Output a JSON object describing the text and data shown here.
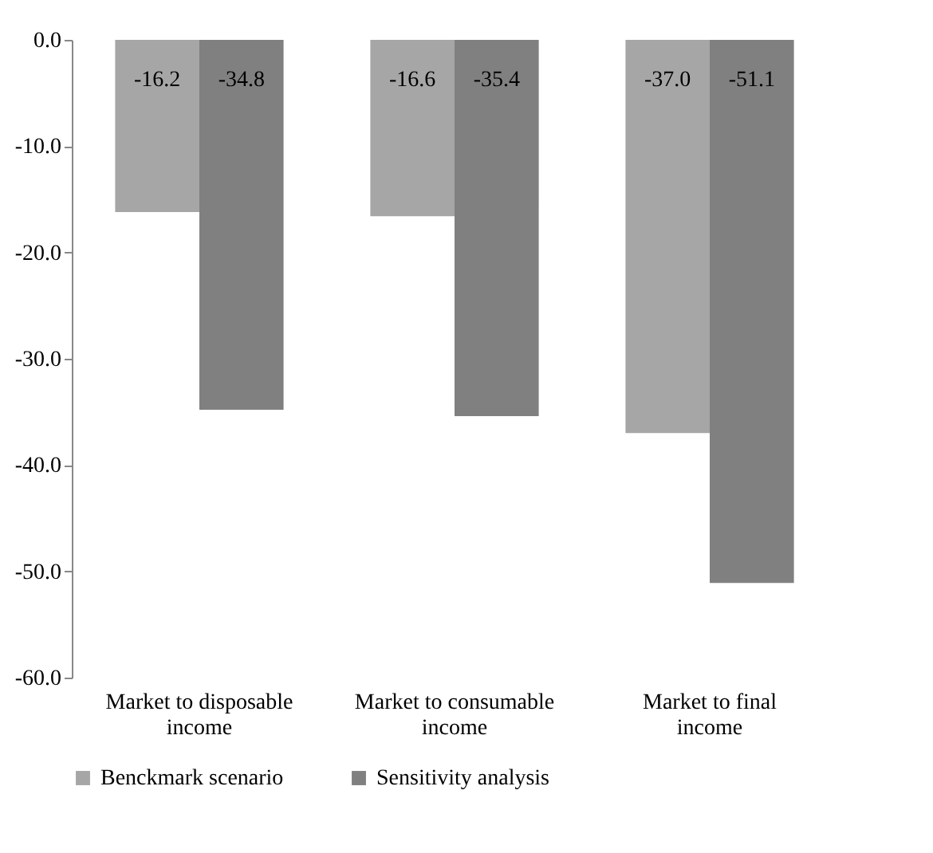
{
  "chart_data": {
    "type": "bar",
    "categories": [
      "Market to disposable income",
      "Market to consumable income",
      "Market to final income"
    ],
    "series": [
      {
        "name": "Benckmark scenario",
        "color": "#a6a6a6",
        "values": [
          -16.2,
          -16.6,
          -37.0
        ],
        "value_labels": [
          "-16.2",
          "-16.6",
          "-37.0"
        ]
      },
      {
        "name": "Sensitivity analysis",
        "color": "#808080",
        "values": [
          -34.8,
          -35.4,
          -51.1
        ],
        "value_labels": [
          "-34.8",
          "-35.4",
          "-51.1"
        ]
      }
    ],
    "ylim": [
      -60,
      0
    ],
    "yticks": [
      {
        "value": -60,
        "label": "-60.0"
      },
      {
        "value": -50,
        "label": "-50.0"
      },
      {
        "value": -40,
        "label": "-40.0"
      },
      {
        "value": -30,
        "label": "-30.0"
      },
      {
        "value": -20,
        "label": "-20.0"
      },
      {
        "value": -10,
        "label": "-10.0"
      },
      {
        "value": 0,
        "label": "0.0"
      }
    ],
    "grid": false,
    "legend": "bottom"
  }
}
